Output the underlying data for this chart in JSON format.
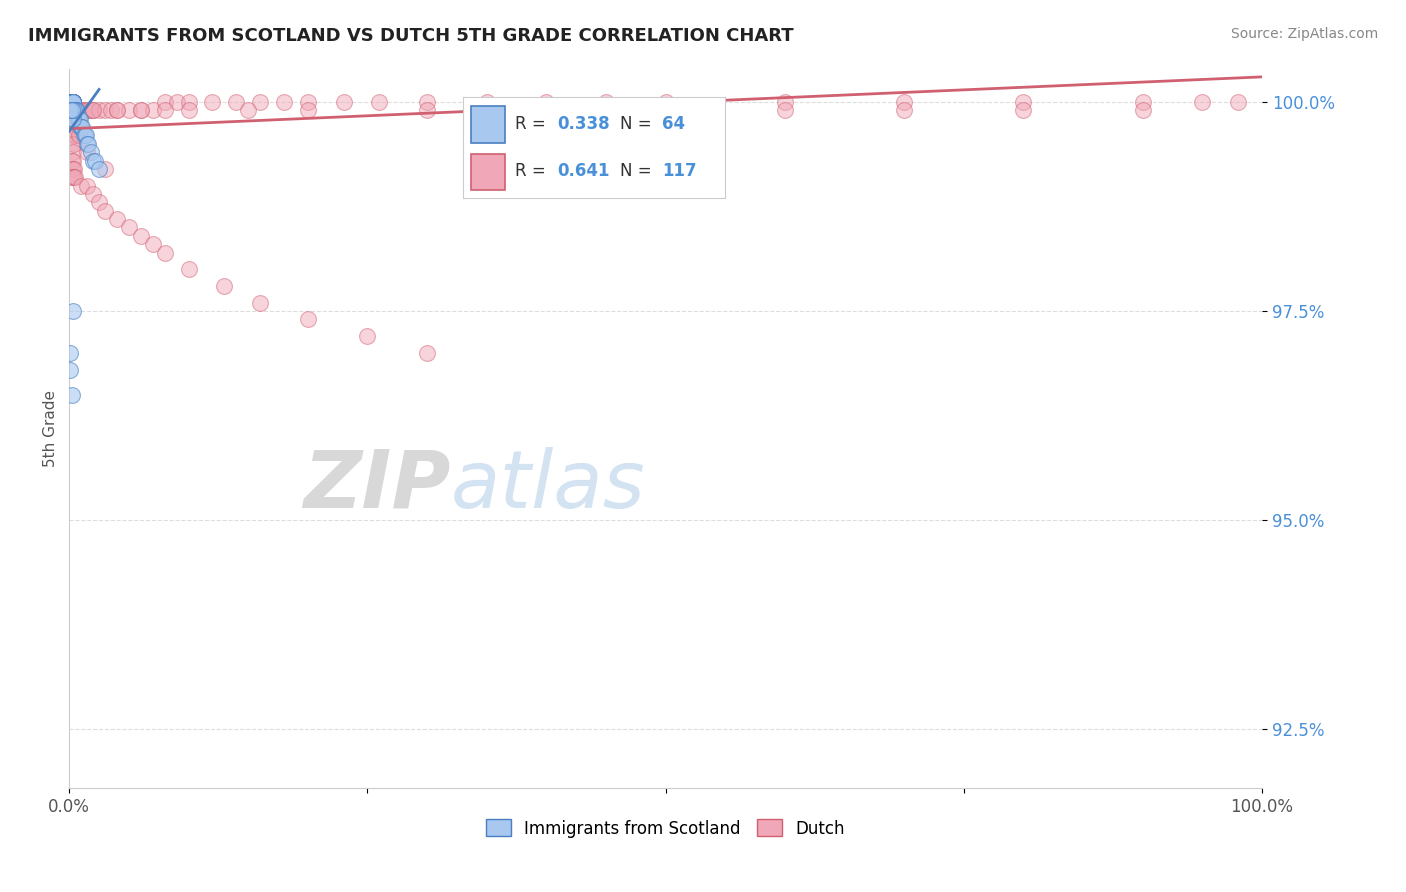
{
  "title": "IMMIGRANTS FROM SCOTLAND VS DUTCH 5TH GRADE CORRELATION CHART",
  "source_text": "Source: ZipAtlas.com",
  "ylabel": "5th Grade",
  "xlim": [
    0.0,
    1.0
  ],
  "ylim": [
    0.918,
    1.004
  ],
  "yticks": [
    0.925,
    0.95,
    0.975,
    1.0
  ],
  "ytick_labels": [
    "92.5%",
    "95.0%",
    "97.5%",
    "100.0%"
  ],
  "xticks": [
    0.0,
    0.25,
    0.5,
    0.75,
    1.0
  ],
  "xtick_labels": [
    "0.0%",
    "",
    "",
    "",
    "100.0%"
  ],
  "legend_r1": "R = 0.338",
  "legend_n1": "N = 64",
  "legend_r2": "R = 0.641",
  "legend_n2": "N = 117",
  "color_blue": "#a8c8f0",
  "color_pink": "#f0a8b8",
  "color_blue_dark": "#4a7fc0",
  "color_pink_dark": "#d06070",
  "background_color": "#ffffff",
  "grid_color": "#dddddd",
  "watermark_zip": "ZIP",
  "watermark_atlas": "atlas",
  "blue_x": [
    0.001,
    0.001,
    0.001,
    0.002,
    0.002,
    0.002,
    0.002,
    0.002,
    0.002,
    0.002,
    0.003,
    0.003,
    0.003,
    0.003,
    0.003,
    0.003,
    0.003,
    0.003,
    0.003,
    0.003,
    0.004,
    0.004,
    0.004,
    0.004,
    0.004,
    0.005,
    0.005,
    0.005,
    0.005,
    0.005,
    0.006,
    0.006,
    0.006,
    0.006,
    0.007,
    0.007,
    0.007,
    0.008,
    0.008,
    0.009,
    0.009,
    0.01,
    0.01,
    0.011,
    0.012,
    0.013,
    0.014,
    0.015,
    0.016,
    0.018,
    0.02,
    0.022,
    0.025,
    0.002,
    0.002,
    0.003,
    0.003,
    0.004,
    0.001,
    0.002,
    0.001,
    0.001,
    0.002,
    0.003
  ],
  "blue_y": [
    1.0,
    1.0,
    1.0,
    1.0,
    1.0,
    1.0,
    1.0,
    1.0,
    1.0,
    1.0,
    1.0,
    1.0,
    1.0,
    1.0,
    1.0,
    1.0,
    1.0,
    1.0,
    1.0,
    1.0,
    0.999,
    0.999,
    0.999,
    0.999,
    0.999,
    0.999,
    0.999,
    0.999,
    0.999,
    0.999,
    0.999,
    0.999,
    0.999,
    0.999,
    0.998,
    0.998,
    0.998,
    0.998,
    0.998,
    0.998,
    0.997,
    0.997,
    0.997,
    0.997,
    0.996,
    0.996,
    0.996,
    0.995,
    0.995,
    0.994,
    0.993,
    0.993,
    0.992,
    0.999,
    0.998,
    0.999,
    0.998,
    0.999,
    0.999,
    0.999,
    0.97,
    0.968,
    0.965,
    0.975
  ],
  "pink_x": [
    0.001,
    0.002,
    0.003,
    0.004,
    0.005,
    0.006,
    0.007,
    0.008,
    0.009,
    0.01,
    0.012,
    0.014,
    0.016,
    0.018,
    0.02,
    0.025,
    0.03,
    0.035,
    0.04,
    0.05,
    0.06,
    0.07,
    0.08,
    0.09,
    0.1,
    0.12,
    0.14,
    0.16,
    0.18,
    0.2,
    0.23,
    0.26,
    0.3,
    0.35,
    0.4,
    0.45,
    0.5,
    0.6,
    0.7,
    0.8,
    0.9,
    0.95,
    0.98,
    0.002,
    0.003,
    0.004,
    0.005,
    0.006,
    0.007,
    0.008,
    0.003,
    0.004,
    0.005,
    0.006,
    0.003,
    0.004,
    0.005,
    0.003,
    0.004,
    0.003,
    0.002,
    0.003,
    0.002,
    0.003,
    0.004,
    0.002,
    0.003,
    0.004,
    0.005,
    0.01,
    0.015,
    0.02,
    0.025,
    0.03,
    0.04,
    0.05,
    0.06,
    0.07,
    0.08,
    0.1,
    0.13,
    0.16,
    0.2,
    0.25,
    0.3,
    0.003,
    0.004,
    0.005,
    0.006,
    0.007,
    0.002,
    0.003,
    0.004,
    0.005,
    0.002,
    0.003,
    0.004,
    0.002,
    0.003,
    0.002,
    0.02,
    0.04,
    0.06,
    0.08,
    0.1,
    0.15,
    0.2,
    0.3,
    0.4,
    0.5,
    0.6,
    0.7,
    0.8,
    0.9,
    0.008,
    0.015,
    0.03
  ],
  "pink_y": [
    0.999,
    0.999,
    0.999,
    0.999,
    0.999,
    0.999,
    0.999,
    0.999,
    0.999,
    0.999,
    0.999,
    0.999,
    0.999,
    0.999,
    0.999,
    0.999,
    0.999,
    0.999,
    0.999,
    0.999,
    0.999,
    0.999,
    1.0,
    1.0,
    1.0,
    1.0,
    1.0,
    1.0,
    1.0,
    1.0,
    1.0,
    1.0,
    1.0,
    1.0,
    1.0,
    1.0,
    1.0,
    1.0,
    1.0,
    1.0,
    1.0,
    1.0,
    1.0,
    0.998,
    0.998,
    0.998,
    0.998,
    0.998,
    0.998,
    0.998,
    0.997,
    0.997,
    0.997,
    0.997,
    0.996,
    0.996,
    0.996,
    0.995,
    0.995,
    0.994,
    0.993,
    0.993,
    0.992,
    0.992,
    0.992,
    0.991,
    0.991,
    0.991,
    0.991,
    0.99,
    0.99,
    0.989,
    0.988,
    0.987,
    0.986,
    0.985,
    0.984,
    0.983,
    0.982,
    0.98,
    0.978,
    0.976,
    0.974,
    0.972,
    0.97,
    0.998,
    0.998,
    0.998,
    0.998,
    0.998,
    0.999,
    0.999,
    0.999,
    0.999,
    0.999,
    0.999,
    0.999,
    0.999,
    0.999,
    0.999,
    0.999,
    0.999,
    0.999,
    0.999,
    0.999,
    0.999,
    0.999,
    0.999,
    0.999,
    0.999,
    0.999,
    0.999,
    0.999,
    0.999,
    0.996,
    0.994,
    0.992
  ]
}
